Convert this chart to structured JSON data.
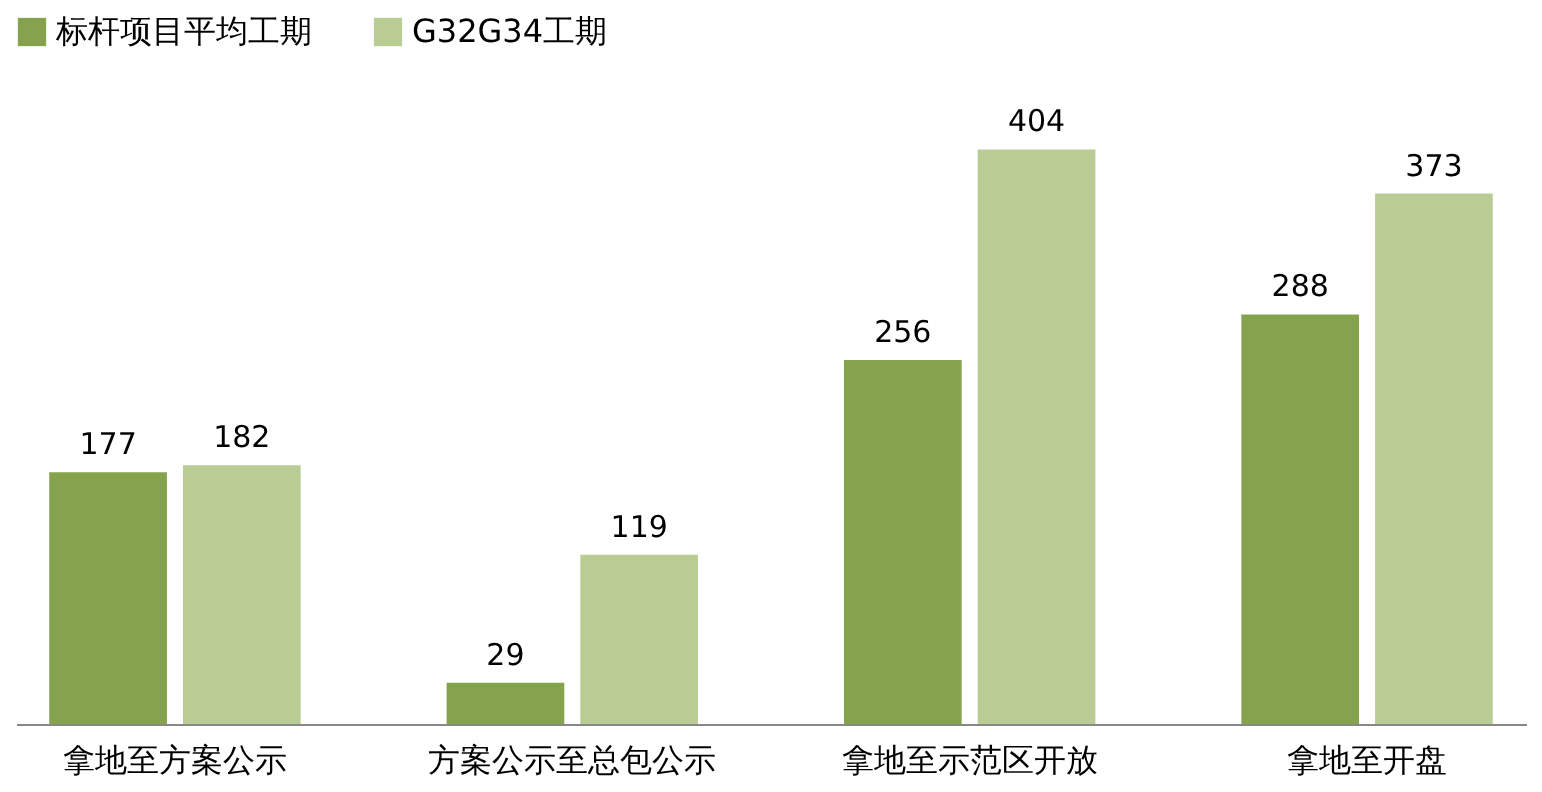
{
  "chart_data": {
    "type": "bar",
    "categories": [
      "拿地至方案公示",
      "方案公示至总包公示",
      "拿地至示范区开放",
      "拿地至开盘"
    ],
    "series": [
      {
        "name": "标杆项目平均工期",
        "color": "#84a34c",
        "values": [
          177,
          29,
          256,
          288
        ]
      },
      {
        "name": "G32G34工期",
        "color": "#b8cc93",
        "values": [
          182,
          119,
          404,
          373
        ]
      }
    ],
    "data_labels": true,
    "legend": "top",
    "grid": false
  }
}
